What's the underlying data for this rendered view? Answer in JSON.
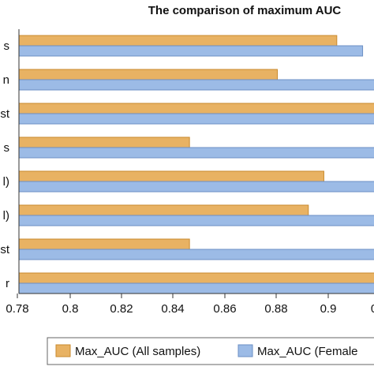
{
  "colors": {
    "series_1": "#e8b263",
    "series_1_stroke": "#c98a2e",
    "series_2": "#9cbbe6",
    "series_2_stroke": "#6b8fc4"
  },
  "chart_data": {
    "type": "bar",
    "orientation": "horizontal",
    "title": "The comparison of maximum AUC",
    "categories": [
      "s",
      "n",
      "st",
      "s",
      "l)",
      "l)",
      "st",
      "r"
    ],
    "series": [
      {
        "name": "Max_AUC (All samples)",
        "values": [
          0.903,
          0.88,
          0.93,
          0.846,
          0.898,
          0.892,
          0.846,
          0.93
        ]
      },
      {
        "name": "Max_AUC (Female",
        "values": [
          0.913,
          0.93,
          0.93,
          0.93,
          0.93,
          0.93,
          0.93,
          0.93
        ]
      }
    ],
    "x_ticks": [
      "0.78",
      "0.8",
      "0.82",
      "0.84",
      "0.86",
      "0.88",
      "0.9",
      "0"
    ],
    "xlim": [
      0.78,
      0.93
    ],
    "grid": false,
    "legend": "bottom"
  }
}
